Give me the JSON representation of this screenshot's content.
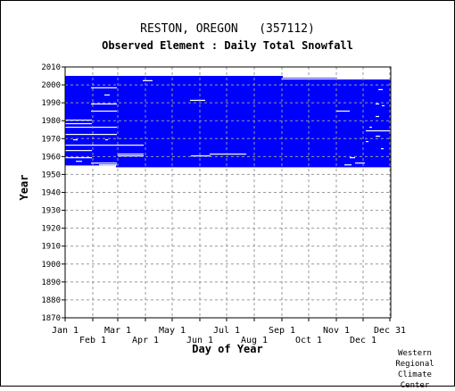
{
  "chart_data": {
    "type": "heatmap",
    "title": "RESTON, OREGON   (357112)",
    "subtitle": "Observed Element : Daily Total Snowfall",
    "xlabel": "Day of Year",
    "ylabel": "Year",
    "x_ticks_upper": [
      "Jan 1",
      "Mar 1",
      "May 1",
      "Jul 1",
      "Sep 1",
      "Nov 1",
      "Dec 31"
    ],
    "x_ticks_lower": [
      "Feb 1",
      "Apr 1",
      "Jun 1",
      "Aug 1",
      "Oct 1",
      "Dec 1"
    ],
    "x_tick_days_upper": [
      1,
      60,
      121,
      182,
      244,
      305,
      365
    ],
    "x_tick_days_lower": [
      32,
      91,
      152,
      213,
      274,
      335
    ],
    "xlim": [
      1,
      365
    ],
    "ylim": [
      1870,
      2010
    ],
    "y_ticks": [
      2010,
      2000,
      1990,
      1980,
      1970,
      1960,
      1950,
      1940,
      1930,
      1920,
      1910,
      1900,
      1890,
      1880,
      1870
    ],
    "grid": true,
    "data_color": "#0000ff",
    "gap_color": "#ffffff",
    "coverage_blocks": [
      {
        "day_start": 1,
        "day_end": 58,
        "year_start": 1955,
        "year_end": 2004
      },
      {
        "day_start": 58,
        "day_end": 244,
        "year_start": 1954,
        "year_end": 2004
      },
      {
        "day_start": 244,
        "day_end": 305,
        "year_start": 1954,
        "year_end": 2003
      },
      {
        "day_start": 305,
        "day_end": 365,
        "year_start": 1954,
        "year_end": 2002
      }
    ],
    "missing_segments": [
      {
        "year": 2003,
        "day_start": 244,
        "day_end": 305
      },
      {
        "year": 2002,
        "day_start": 88,
        "day_end": 98
      },
      {
        "year": 1998,
        "day_start": 30,
        "day_end": 58
      },
      {
        "year": 1997,
        "day_start": 352,
        "day_end": 356
      },
      {
        "year": 1994,
        "day_start": 45,
        "day_end": 50
      },
      {
        "year": 1991,
        "day_start": 141,
        "day_end": 157
      },
      {
        "year": 1989,
        "day_start": 30,
        "day_end": 58
      },
      {
        "year": 1989,
        "day_start": 349,
        "day_end": 352
      },
      {
        "year": 1988,
        "day_start": 356,
        "day_end": 358
      },
      {
        "year": 1985,
        "day_start": 305,
        "day_end": 319
      },
      {
        "year": 1985,
        "day_start": 30,
        "day_end": 58
      },
      {
        "year": 1982,
        "day_start": 349,
        "day_end": 352
      },
      {
        "year": 1980,
        "day_start": 1,
        "day_end": 30
      },
      {
        "year": 1978,
        "day_start": 1,
        "day_end": 30
      },
      {
        "year": 1976,
        "day_start": 1,
        "day_end": 58
      },
      {
        "year": 1976,
        "day_start": 342,
        "day_end": 344
      },
      {
        "year": 1974,
        "day_start": 338,
        "day_end": 365
      },
      {
        "year": 1972,
        "day_start": 1,
        "day_end": 30
      },
      {
        "year": 1972,
        "day_start": 30,
        "day_end": 58
      },
      {
        "year": 1971,
        "day_start": 349,
        "day_end": 353
      },
      {
        "year": 1969,
        "day_start": 10,
        "day_end": 14
      },
      {
        "year": 1969,
        "day_start": 46,
        "day_end": 48
      },
      {
        "year": 1968,
        "day_start": 338,
        "day_end": 340
      },
      {
        "year": 1966,
        "day_start": 1,
        "day_end": 88
      },
      {
        "year": 1964,
        "day_start": 355,
        "day_end": 357
      },
      {
        "year": 1963,
        "day_start": 1,
        "day_end": 30
      },
      {
        "year": 1961,
        "day_start": 60,
        "day_end": 88
      },
      {
        "year": 1961,
        "day_start": 163,
        "day_end": 203
      },
      {
        "year": 1960,
        "day_start": 60,
        "day_end": 88
      },
      {
        "year": 1960,
        "day_start": 142,
        "day_end": 163
      },
      {
        "year": 1959,
        "day_start": 1,
        "day_end": 30
      },
      {
        "year": 1959,
        "day_start": 320,
        "day_end": 325
      },
      {
        "year": 1957,
        "day_start": 13,
        "day_end": 19
      },
      {
        "year": 1956,
        "day_start": 30,
        "day_end": 58
      },
      {
        "year": 1956,
        "day_start": 326,
        "day_end": 336
      },
      {
        "year": 1955,
        "day_start": 39,
        "day_end": 58
      },
      {
        "year": 1955,
        "day_start": 314,
        "day_end": 321
      }
    ]
  },
  "footer": {
    "credit_lines": [
      "Western",
      "Regional",
      "Climate",
      "Center"
    ]
  }
}
